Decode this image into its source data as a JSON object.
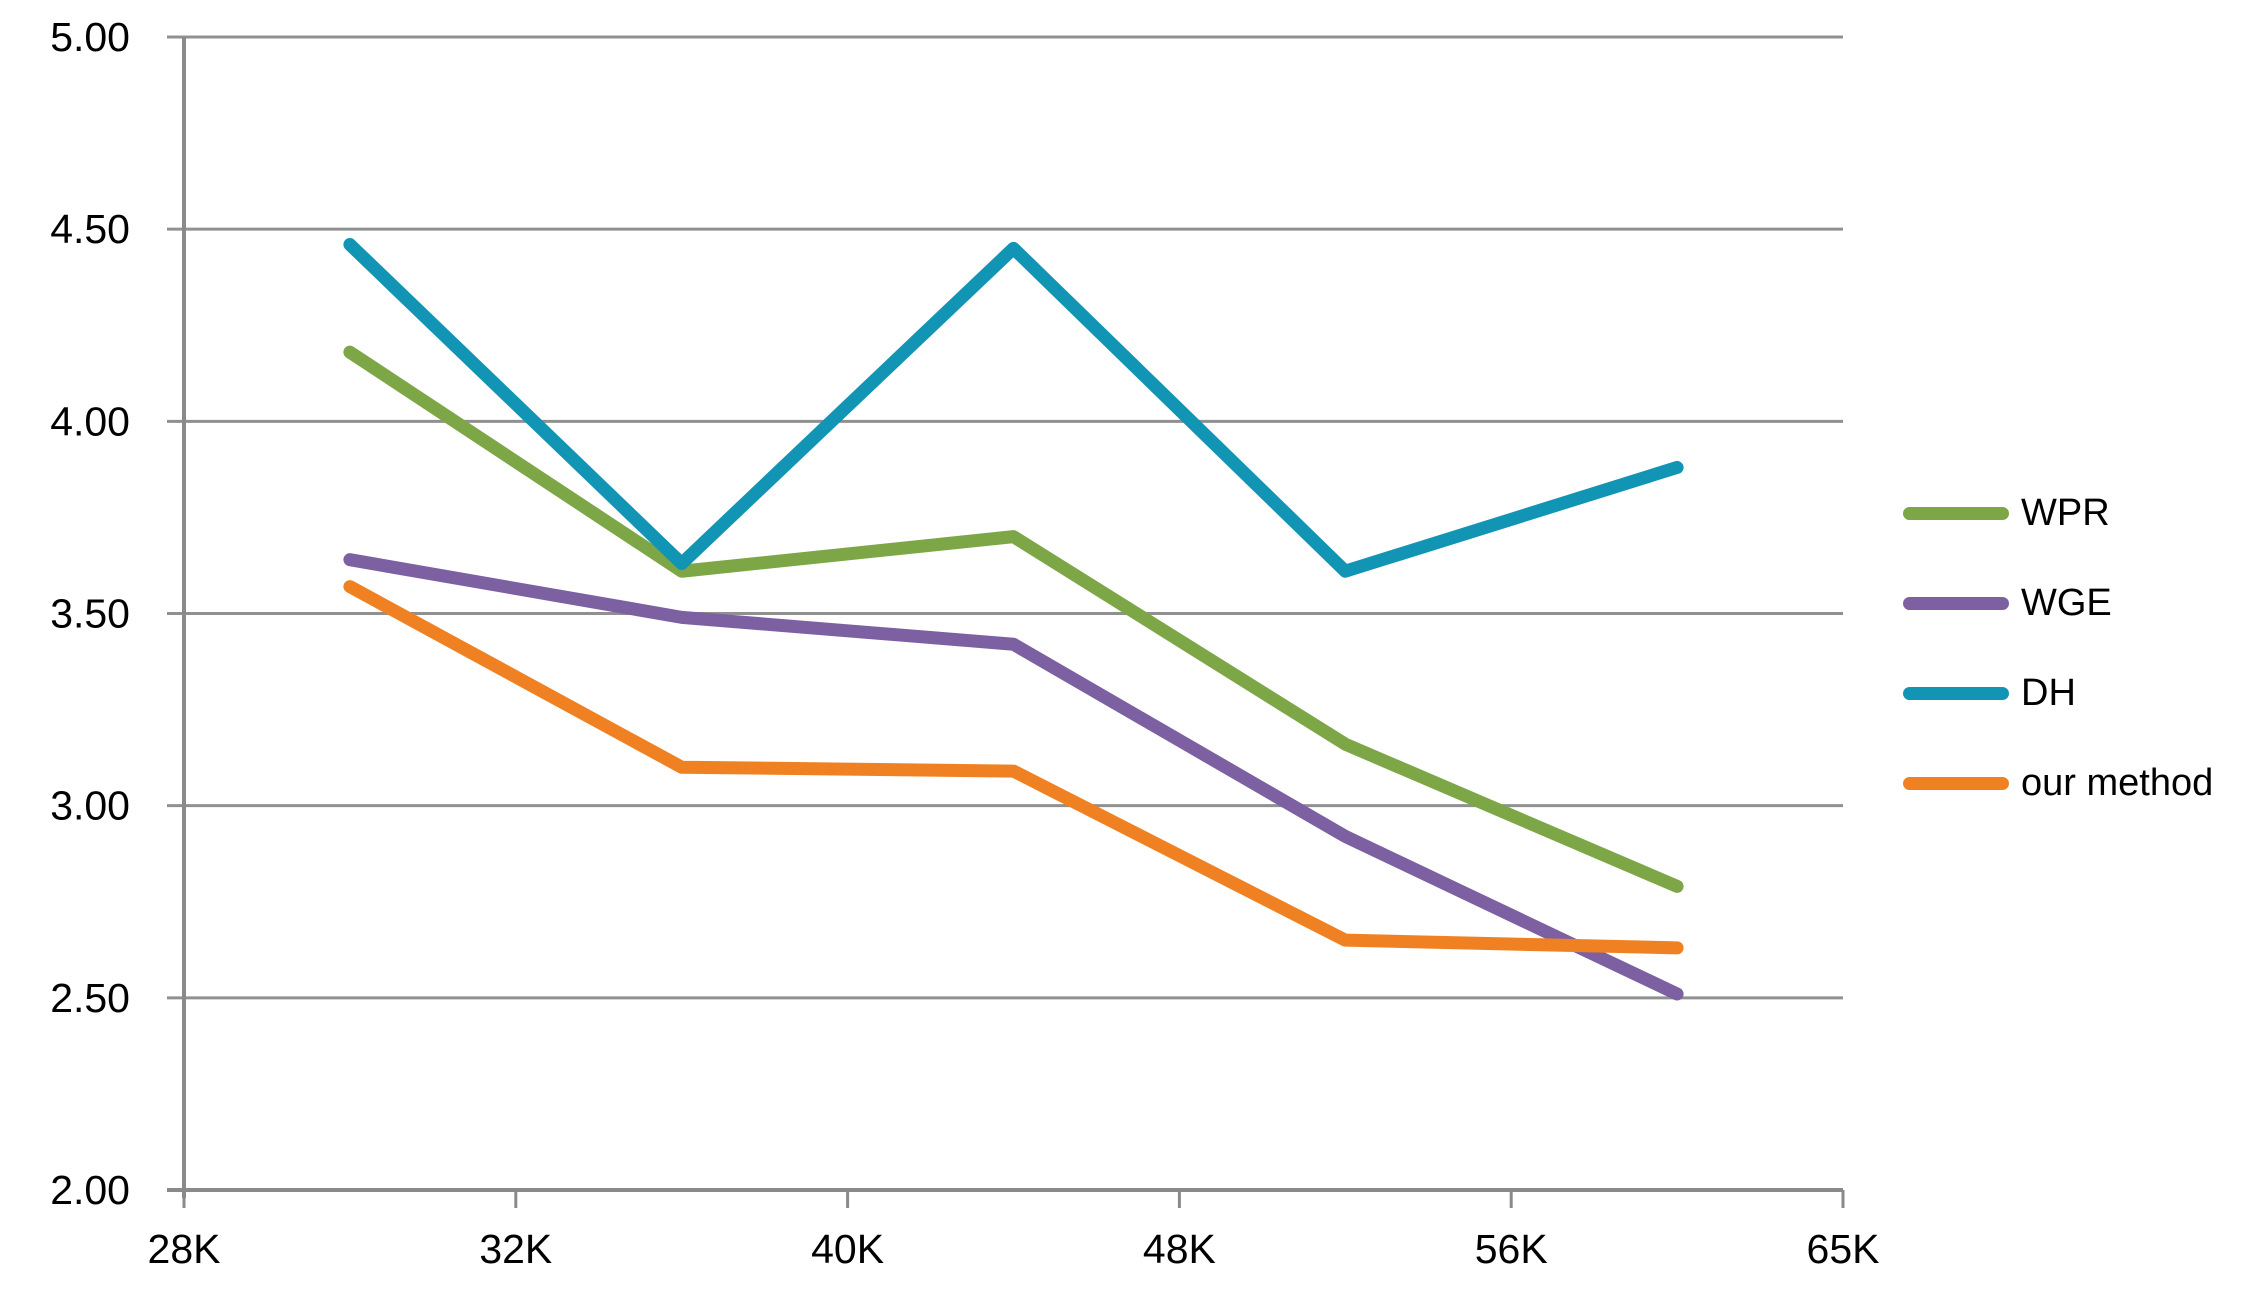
{
  "chart_data": {
    "type": "line",
    "title": "",
    "x_axis": {
      "tick_labels": [
        "28K",
        "32K",
        "40K",
        "48K",
        "56K",
        "65K"
      ],
      "points_plotted_between_ticks": true
    },
    "y_axis": {
      "min": 2.0,
      "max": 5.0,
      "step": 0.5,
      "tick_labels": [
        "5.00",
        "4.50",
        "4.00",
        "3.50",
        "3.00",
        "2.50",
        "2.00"
      ]
    },
    "grid": true,
    "legend_position": "right-center",
    "series": [
      {
        "name": "WPR",
        "color": "#7DA647",
        "values": [
          4.18,
          3.61,
          3.7,
          3.16,
          2.79
        ]
      },
      {
        "name": "WGE",
        "color": "#7C60A2",
        "values": [
          3.64,
          3.49,
          3.42,
          2.92,
          2.51
        ]
      },
      {
        "name": "DH",
        "color": "#1295B4",
        "values": [
          4.46,
          3.63,
          4.45,
          3.61,
          3.88
        ]
      },
      {
        "name": "our method",
        "color": "#F08122",
        "values": [
          3.57,
          3.1,
          3.09,
          2.65,
          2.63
        ]
      }
    ],
    "colors": {
      "gridline": "#909090",
      "axis": "#8A8A8A",
      "text": "#000000",
      "background": "#FFFFFF"
    }
  }
}
